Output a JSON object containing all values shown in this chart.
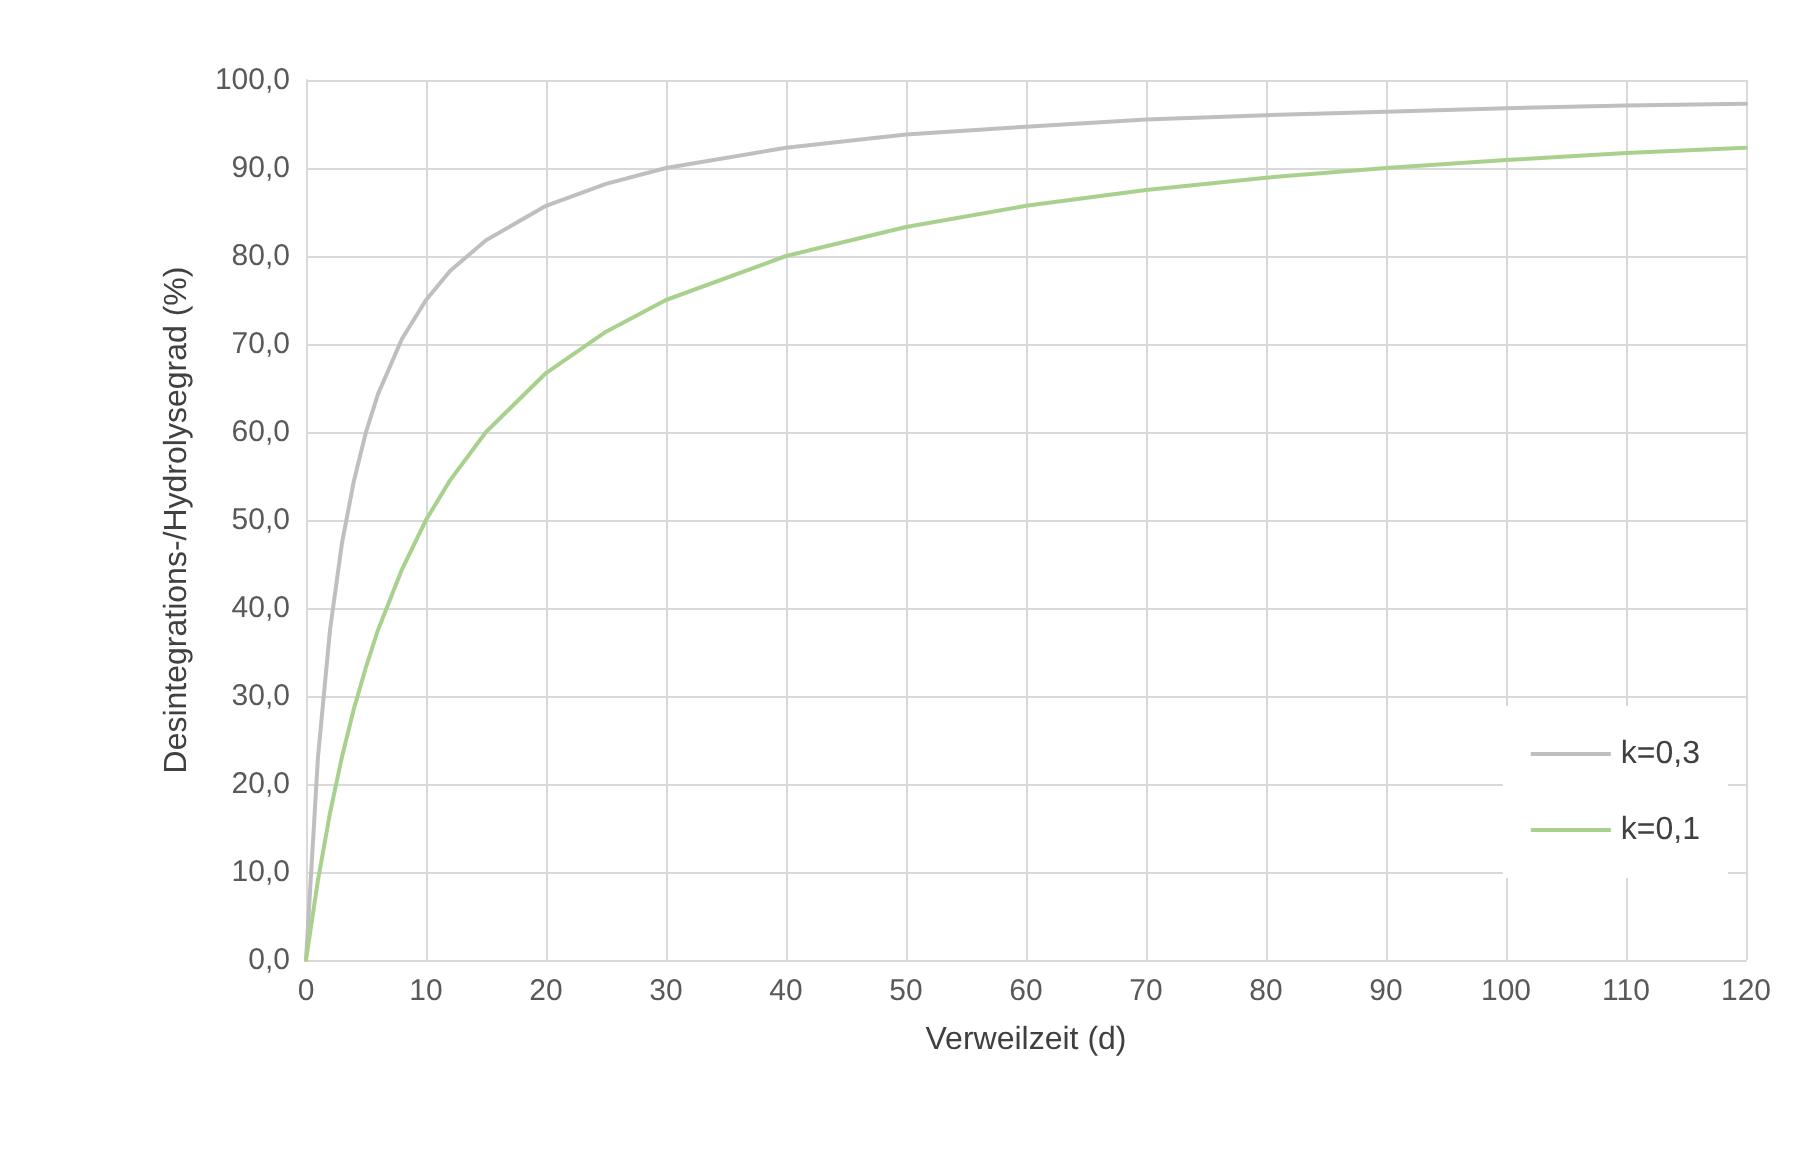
{
  "chart_data": {
    "type": "line",
    "xlabel": "Verweilzeit (d)",
    "ylabel": "Desintegrations-/Hydrolysegrad (%)",
    "x": [
      0,
      1,
      2,
      3,
      4,
      5,
      6,
      8,
      10,
      12,
      15,
      20,
      25,
      30,
      40,
      50,
      60,
      70,
      80,
      90,
      100,
      110,
      120
    ],
    "series": [
      {
        "name": "k=0,3",
        "color": "#bfbfbf",
        "values": [
          0,
          23.1,
          37.5,
          47.4,
          54.5,
          60.0,
          64.3,
          70.6,
          75.0,
          78.3,
          81.8,
          85.7,
          88.2,
          90.0,
          92.3,
          93.8,
          94.7,
          95.5,
          96.0,
          96.4,
          96.8,
          97.1,
          97.3
        ]
      },
      {
        "name": "k=0,1",
        "color": "#a9d18e",
        "values": [
          0,
          9.1,
          16.7,
          23.1,
          28.6,
          33.3,
          37.5,
          44.4,
          50.0,
          54.5,
          60.0,
          66.7,
          71.4,
          75.0,
          80.0,
          83.3,
          85.7,
          87.5,
          88.9,
          90.0,
          90.9,
          91.7,
          92.3
        ]
      }
    ],
    "xlim": [
      0,
      120
    ],
    "xticks": [
      0,
      10,
      20,
      30,
      40,
      50,
      60,
      70,
      80,
      90,
      100,
      110,
      120
    ],
    "ylim": [
      0,
      100
    ],
    "yticks": [
      {
        "value": 0,
        "label": "0,0"
      },
      {
        "value": 10,
        "label": "10,0"
      },
      {
        "value": 20,
        "label": "20,0"
      },
      {
        "value": 30,
        "label": "30,0"
      },
      {
        "value": 40,
        "label": "40,0"
      },
      {
        "value": 50,
        "label": "50,0"
      },
      {
        "value": 60,
        "label": "60,0"
      },
      {
        "value": 70,
        "label": "70,0"
      },
      {
        "value": 80,
        "label": "80,0"
      },
      {
        "value": 90,
        "label": "90,0"
      },
      {
        "value": 100,
        "label": "100,0"
      }
    ],
    "grid": true,
    "legend": "bottom right",
    "marker": "none",
    "line_style": "solid"
  }
}
